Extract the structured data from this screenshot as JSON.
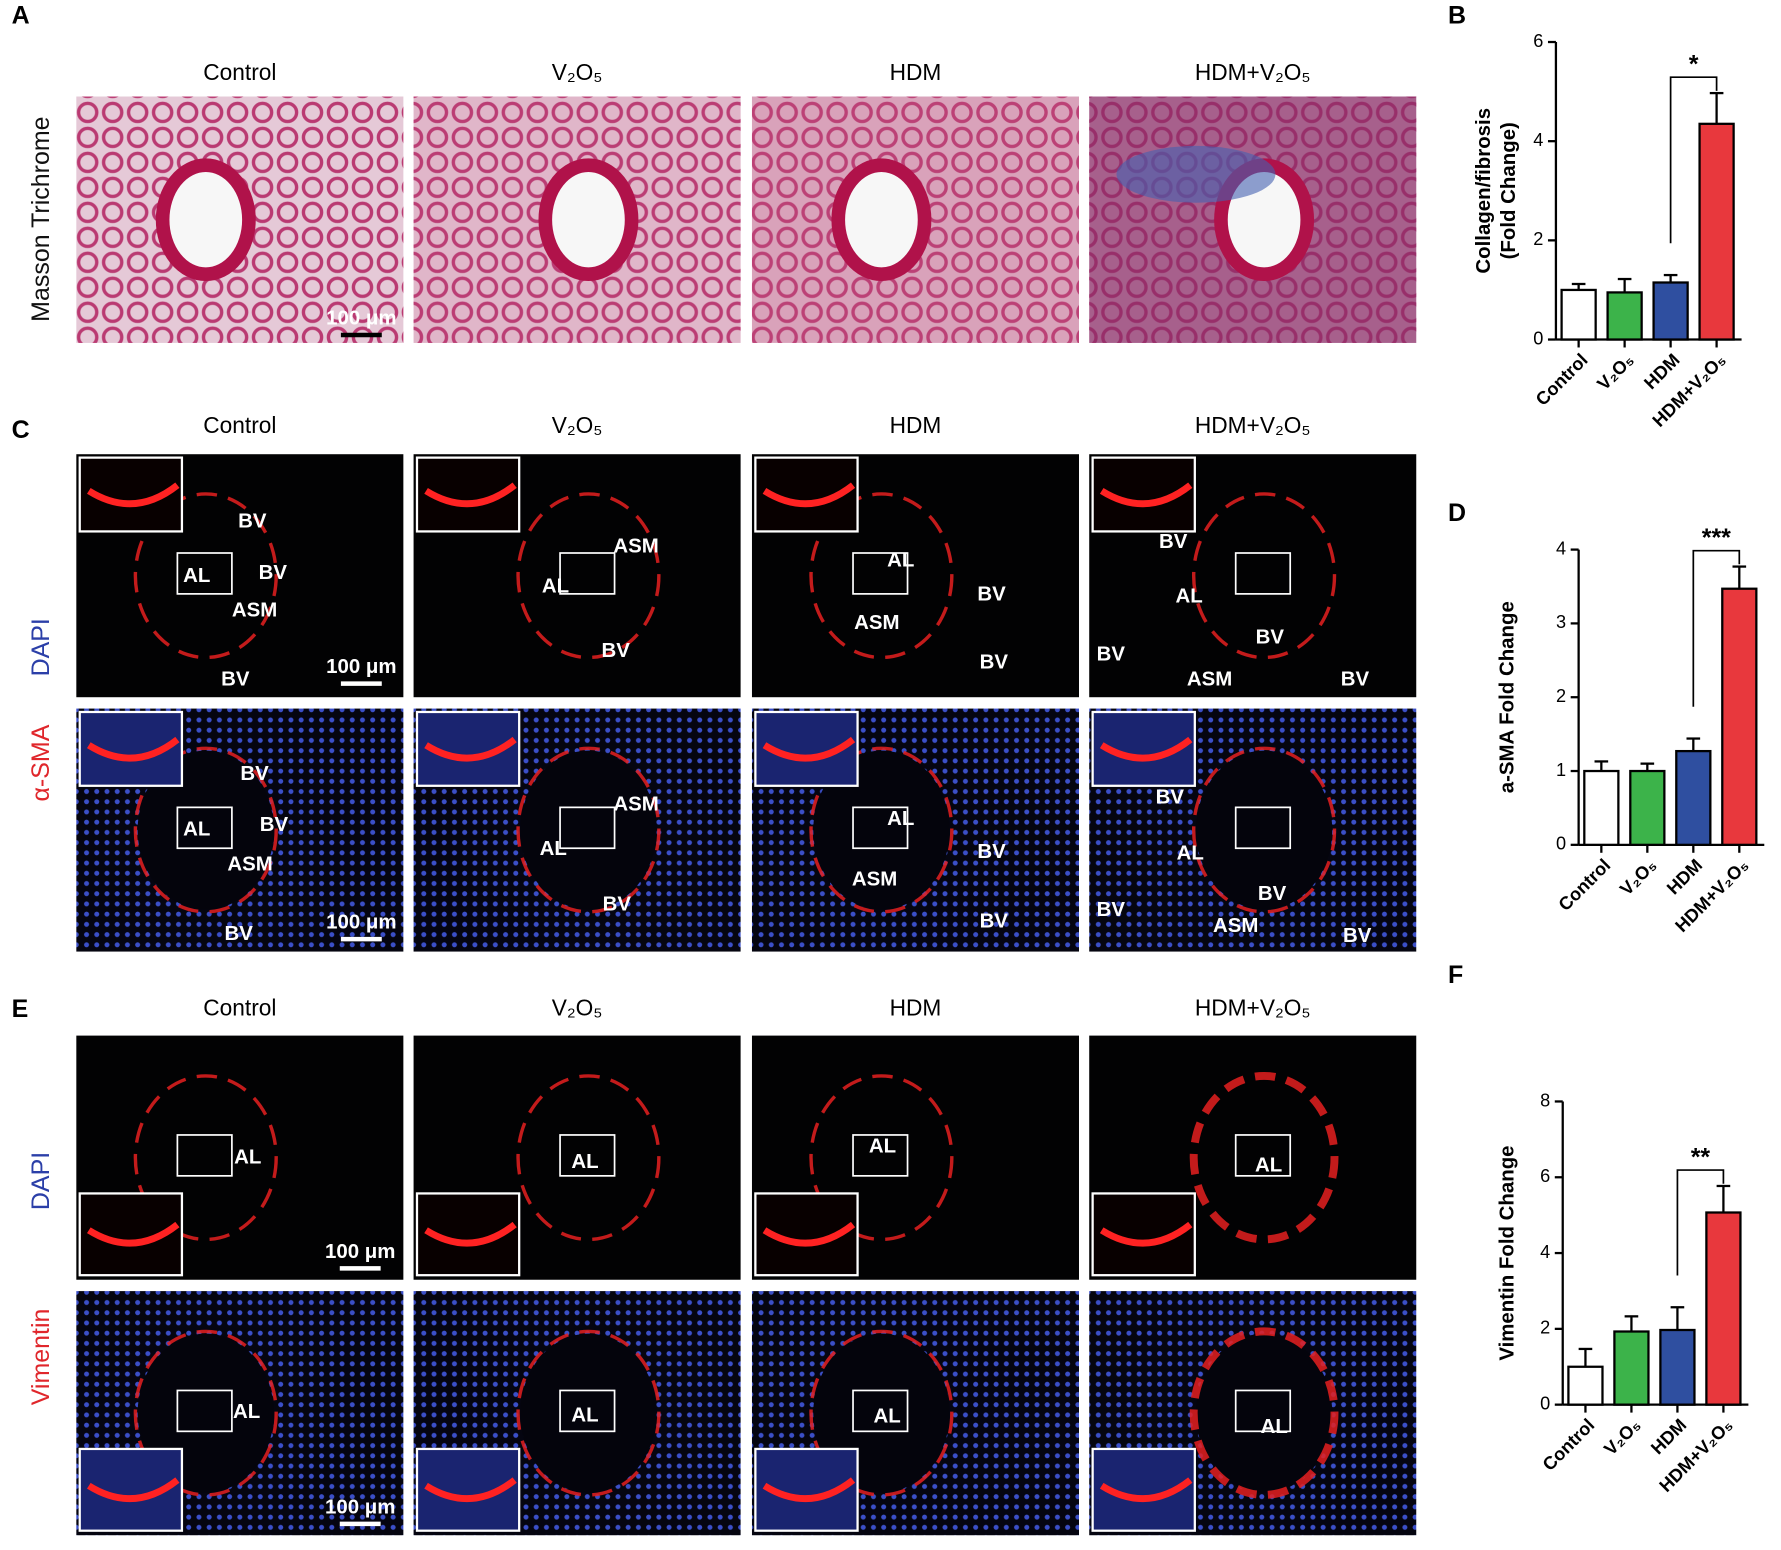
{
  "panels": [
    {
      "letter": "A",
      "columns": [
        "Control",
        "V₂O₅",
        "HDM",
        "HDM+V₂O₅"
      ],
      "row_labels": [
        "Masson Trichrome"
      ],
      "row_label_colors": [
        "#111111"
      ],
      "annotations": [
        [
          [
            "100 μm"
          ],
          [],
          [],
          []
        ]
      ]
    },
    {
      "letter": "C",
      "columns": [
        "Control",
        "V₂O₅",
        "HDM",
        "HDM+V₂O₅"
      ],
      "row_labels": [
        "DAPI",
        "α-SMA"
      ],
      "row_label_colors": [
        "#2b3fa8",
        "#e0262b"
      ],
      "annotations": [
        [
          [
            "BV",
            "AL",
            "BV",
            "ASM",
            "BV",
            "100 μm"
          ],
          [
            "ASM",
            "AL",
            "BV"
          ],
          [
            "AL",
            "BV",
            "ASM",
            "BV"
          ],
          [
            "BV",
            "AL",
            "BV",
            "BV",
            "ASM",
            "BV"
          ]
        ],
        [
          [
            "BV",
            "AL",
            "BV",
            "ASM",
            "BV",
            "100 μm"
          ],
          [
            "ASM",
            "AL",
            "BV"
          ],
          [
            "AL",
            "BV",
            "ASM",
            "BV"
          ],
          [
            "BV",
            "AL",
            "BV",
            "BV",
            "ASM",
            "BV"
          ]
        ]
      ]
    },
    {
      "letter": "E",
      "columns": [
        "Control",
        "V₂O₅",
        "HDM",
        "HDM+V₂O₅"
      ],
      "row_labels": [
        "DAPI",
        "Vimentin"
      ],
      "row_label_colors": [
        "#2b3fa8",
        "#e0262b"
      ],
      "annotations": [
        [
          [
            "AL",
            "100 μm"
          ],
          [
            "AL"
          ],
          [
            "AL"
          ],
          [
            "AL"
          ]
        ],
        [
          [
            "AL",
            "100 μm"
          ],
          [
            "AL"
          ],
          [
            "AL"
          ],
          [
            "AL"
          ]
        ]
      ]
    }
  ],
  "chart_data": [
    {
      "type": "bar",
      "letter": "B",
      "y_label": [
        "Collagen/fibrosis",
        "(Fold Change)"
      ],
      "categories": [
        "Control",
        "V₂O₅",
        "HDM",
        "HDM+V₂O₅"
      ],
      "values": [
        1.0,
        0.95,
        1.15,
        4.35
      ],
      "errors": [
        0.12,
        0.27,
        0.15,
        0.62
      ],
      "colors": [
        "#ffffff",
        "#3cb34a",
        "#2f4fa0",
        "#e8383d"
      ],
      "ylim": [
        0,
        6
      ],
      "yticks": [
        0,
        2,
        4,
        6
      ],
      "significance": "*"
    },
    {
      "type": "bar",
      "letter": "D",
      "y_label": [
        "a-SMA Fold Change"
      ],
      "categories": [
        "Control",
        "V₂O₅",
        "HDM",
        "HDM+V₂O₅"
      ],
      "values": [
        1.0,
        1.0,
        1.27,
        3.47
      ],
      "errors": [
        0.13,
        0.1,
        0.17,
        0.3
      ],
      "colors": [
        "#ffffff",
        "#3cb34a",
        "#2f4fa0",
        "#e8383d"
      ],
      "ylim": [
        0,
        4
      ],
      "yticks": [
        0,
        1,
        2,
        3,
        4
      ],
      "significance": "***"
    },
    {
      "type": "bar",
      "letter": "F",
      "y_label": [
        "Vimentin Fold Change"
      ],
      "categories": [
        "Control",
        "V₂O₅",
        "HDM",
        "HDM+V₂O₅"
      ],
      "values": [
        1.0,
        1.93,
        1.97,
        5.07
      ],
      "errors": [
        0.47,
        0.4,
        0.6,
        0.7
      ],
      "colors": [
        "#ffffff",
        "#3cb34a",
        "#2f4fa0",
        "#e8383d"
      ],
      "ylim": [
        0,
        8
      ],
      "yticks": [
        0,
        2,
        4,
        6,
        8
      ],
      "significance": "**"
    }
  ]
}
